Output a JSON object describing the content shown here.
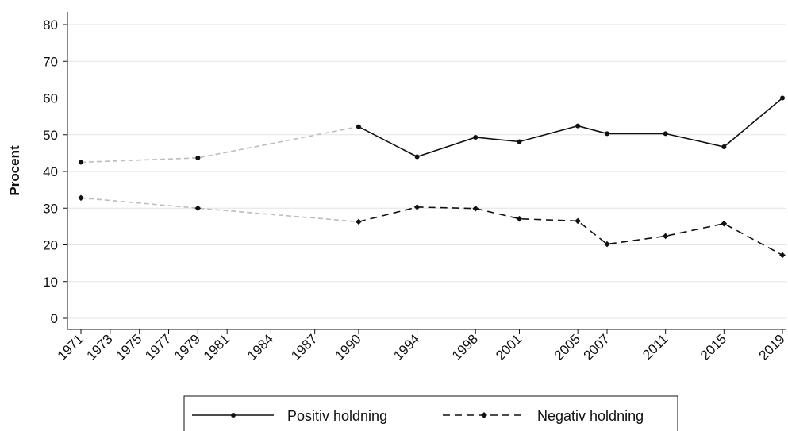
{
  "chart_data": {
    "type": "line",
    "ylabel": "Procent",
    "xlabel": "",
    "ylim": [
      0,
      80
    ],
    "yticks": [
      0,
      10,
      20,
      30,
      40,
      50,
      60,
      70,
      80
    ],
    "xticks": [
      1971,
      1973,
      1975,
      1977,
      1979,
      1981,
      1984,
      1987,
      1990,
      1994,
      1998,
      2001,
      2005,
      2007,
      2011,
      2015,
      2019
    ],
    "grid": true,
    "legend_position": "bottom",
    "series": [
      {
        "name": "Positiv holdning",
        "line_style": "solid",
        "marker": "circle",
        "color": "#111111",
        "x": [
          1971,
          1979,
          1990,
          1994,
          1998,
          2001,
          2005,
          2007,
          2011,
          2015,
          2019
        ],
        "values": [
          42.5,
          43.7,
          52.2,
          44.0,
          49.3,
          48.1,
          52.4,
          50.3,
          50.3,
          46.7,
          60.0
        ],
        "connector_end_x": 1990,
        "connector_color": "#bdbdbd"
      },
      {
        "name": "Negativ holdning",
        "line_style": "dashed",
        "marker": "diamond",
        "color": "#111111",
        "x": [
          1971,
          1979,
          1990,
          1994,
          1998,
          2001,
          2005,
          2007,
          2011,
          2015,
          2019
        ],
        "values": [
          32.8,
          30.0,
          26.3,
          30.3,
          29.9,
          27.1,
          26.5,
          20.2,
          22.4,
          25.8,
          17.2
        ],
        "connector_end_x": 1990,
        "connector_color": "#bdbdbd"
      }
    ]
  }
}
